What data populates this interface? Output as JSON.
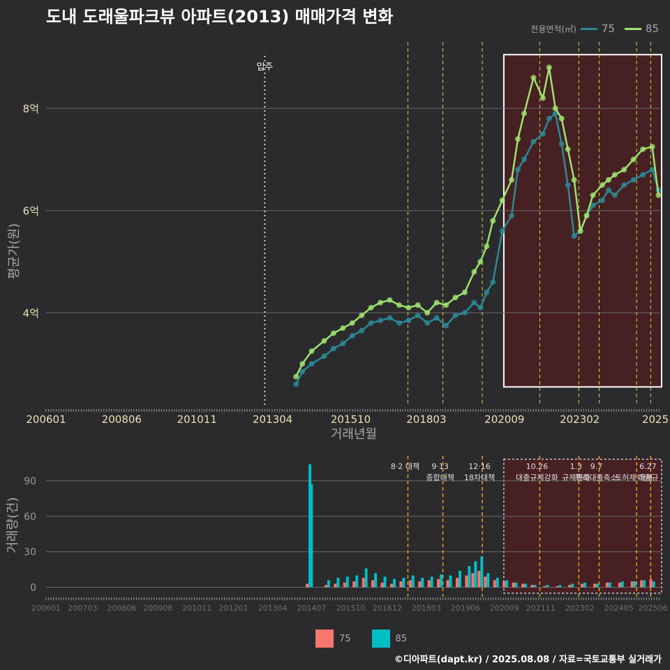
{
  "title": "도내 도래울파크뷰 아파트(2013) 매매가격 변화",
  "credit": "©디아파트(dapt.kr) / 2025.08.08 / 자료=국토교통부 실거래가",
  "legend_top": {
    "title": "전용면적(㎡)",
    "items": [
      {
        "label": "75",
        "color": "#2a8a94"
      },
      {
        "label": "85",
        "color": "#9ee36e"
      }
    ]
  },
  "legend_bottom": {
    "items": [
      {
        "label": "75",
        "color": "#f8766d"
      },
      {
        "label": "85",
        "color": "#00bfc4"
      }
    ]
  },
  "chart_data": [
    {
      "type": "line",
      "title": "도내 도래울파크뷰 아파트(2013) 매매가격 변화",
      "xlabel": "거래년월",
      "ylabel": "평균가(원)",
      "xlim": [
        2006.0,
        2025.7
      ],
      "ylim": [
        2.2,
        9.3
      ],
      "x_tick_labels": [
        "200601",
        "200806",
        "201011",
        "201304",
        "201510",
        "201803",
        "202009",
        "202302",
        "2025"
      ],
      "x_tick_values": [
        2006.0,
        2008.42,
        2010.83,
        2013.25,
        2015.75,
        2018.17,
        2020.67,
        2023.08,
        2025.5
      ],
      "y_tick_labels": [
        "4억",
        "6억",
        "8억"
      ],
      "y_tick_values": [
        4,
        6,
        8
      ],
      "annotation": {
        "label": "입주",
        "x": 2013.0
      },
      "policy_lines": [
        2017.58,
        2018.7,
        2019.96,
        2021.8,
        2023.05,
        2023.7,
        2024.9,
        2025.35
      ],
      "highlight": {
        "x_start": 2020.65,
        "x_end": 2025.7,
        "y_start": 2.55,
        "y_end": 9.05
      },
      "series": [
        {
          "name": "75",
          "x": [
            2014.0,
            2014.2,
            2014.5,
            2014.9,
            2015.2,
            2015.5,
            2015.8,
            2016.1,
            2016.4,
            2016.7,
            2017.0,
            2017.3,
            2017.6,
            2017.9,
            2018.2,
            2018.5,
            2018.8,
            2019.1,
            2019.4,
            2019.7,
            2019.9,
            2020.1,
            2020.3,
            2020.6,
            2020.9,
            2021.1,
            2021.3,
            2021.6,
            2021.9,
            2022.1,
            2022.3,
            2022.5,
            2022.7,
            2022.9,
            2023.1,
            2023.3,
            2023.5,
            2023.8,
            2024.0,
            2024.2,
            2024.5,
            2024.8,
            2025.1,
            2025.4,
            2025.6
          ],
          "y": [
            2.6,
            2.85,
            3.0,
            3.15,
            3.3,
            3.4,
            3.55,
            3.65,
            3.8,
            3.85,
            3.9,
            3.8,
            3.85,
            3.95,
            3.8,
            3.9,
            3.75,
            3.95,
            4.0,
            4.2,
            4.1,
            4.4,
            4.6,
            5.6,
            5.9,
            6.8,
            7.0,
            7.35,
            7.5,
            7.8,
            7.9,
            7.3,
            6.5,
            5.5,
            5.6,
            5.9,
            6.1,
            6.2,
            6.4,
            6.3,
            6.5,
            6.6,
            6.7,
            6.8,
            6.4
          ]
        },
        {
          "name": "85",
          "x": [
            2014.0,
            2014.2,
            2014.5,
            2014.9,
            2015.2,
            2015.5,
            2015.8,
            2016.1,
            2016.4,
            2016.7,
            2017.0,
            2017.3,
            2017.6,
            2017.9,
            2018.2,
            2018.5,
            2018.8,
            2019.1,
            2019.4,
            2019.7,
            2019.9,
            2020.1,
            2020.3,
            2020.6,
            2020.9,
            2021.1,
            2021.3,
            2021.6,
            2021.9,
            2022.1,
            2022.3,
            2022.5,
            2022.7,
            2022.9,
            2023.1,
            2023.3,
            2023.5,
            2023.8,
            2024.0,
            2024.2,
            2024.5,
            2024.8,
            2025.1,
            2025.4,
            2025.6
          ],
          "y": [
            2.75,
            3.0,
            3.25,
            3.45,
            3.6,
            3.7,
            3.8,
            3.95,
            4.1,
            4.2,
            4.25,
            4.15,
            4.1,
            4.15,
            4.0,
            4.2,
            4.15,
            4.3,
            4.4,
            4.8,
            5.0,
            5.3,
            5.8,
            6.2,
            6.6,
            7.4,
            7.9,
            8.6,
            8.2,
            8.8,
            8.0,
            7.8,
            7.2,
            6.6,
            5.6,
            5.9,
            6.3,
            6.5,
            6.6,
            6.7,
            6.8,
            7.0,
            7.2,
            7.25,
            6.3
          ]
        }
      ]
    },
    {
      "type": "bar",
      "ylabel": "거래량(건)",
      "ylim": [
        -5,
        110
      ],
      "y_tick_values": [
        0,
        30,
        60,
        90
      ],
      "x_tick_labels": [
        "200601",
        "200703",
        "200806",
        "200908",
        "201011",
        "201201",
        "201304",
        "201407",
        "201510",
        "201612",
        "201803",
        "201906",
        "202009",
        "202111",
        "202302",
        "202405",
        "202506"
      ],
      "x_tick_values": [
        2006.0,
        2007.17,
        2008.42,
        2009.58,
        2010.83,
        2012.0,
        2013.25,
        2014.5,
        2015.75,
        2016.92,
        2018.17,
        2019.42,
        2020.67,
        2021.83,
        2023.08,
        2024.33,
        2025.42
      ],
      "policies": [
        {
          "x": 2017.58,
          "lines": [
            "8·2 대책"
          ]
        },
        {
          "x": 2018.7,
          "lines": [
            "9·13",
            "종합대책"
          ]
        },
        {
          "x": 2019.96,
          "lines": [
            "12·16",
            "18차대책"
          ]
        },
        {
          "x": 2021.8,
          "lines": [
            "10.26",
            "대출규제강화"
          ]
        },
        {
          "x": 2023.05,
          "lines": [
            "1.3",
            "규제완화"
          ]
        },
        {
          "x": 2023.7,
          "lines": [
            "9.7",
            "특례대출축소"
          ]
        },
        {
          "x": 2024.9,
          "lines": [
            "",
            "토허제 해제"
          ]
        },
        {
          "x": 2025.35,
          "lines": [
            "6.27",
            "대출규"
          ]
        }
      ],
      "highlight": {
        "x_start": 2020.65,
        "x_end": 2025.7
      },
      "series": [
        {
          "name": "75",
          "x": [
            2014.4,
            2014.45,
            2015.0,
            2015.3,
            2015.6,
            2015.9,
            2016.2,
            2016.5,
            2016.8,
            2017.1,
            2017.4,
            2017.7,
            2018.0,
            2018.3,
            2018.6,
            2018.9,
            2019.2,
            2019.5,
            2019.7,
            2019.9,
            2020.1,
            2020.4,
            2020.7,
            2021.0,
            2021.3,
            2021.6,
            2022.0,
            2022.4,
            2022.8,
            2023.2,
            2023.6,
            2024.0,
            2024.4,
            2024.8,
            2025.1,
            2025.4
          ],
          "y": [
            3,
            2,
            2,
            3,
            4,
            5,
            8,
            6,
            4,
            3,
            5,
            6,
            5,
            6,
            7,
            6,
            8,
            10,
            12,
            14,
            9,
            6,
            5,
            4,
            3,
            2,
            1,
            1,
            2,
            3,
            3,
            4,
            4,
            5,
            6,
            7
          ]
        },
        {
          "name": "85",
          "x": [
            2014.4,
            2014.45,
            2015.0,
            2015.3,
            2015.6,
            2015.9,
            2016.2,
            2016.5,
            2016.8,
            2017.1,
            2017.4,
            2017.7,
            2018.0,
            2018.3,
            2018.6,
            2018.9,
            2019.2,
            2019.5,
            2019.7,
            2019.9,
            2020.1,
            2020.4,
            2020.7,
            2021.0,
            2021.3,
            2021.6,
            2022.0,
            2022.4,
            2022.8,
            2023.2,
            2023.6,
            2024.0,
            2024.4,
            2024.8,
            2025.1,
            2025.4
          ],
          "y": [
            104,
            87,
            6,
            8,
            9,
            10,
            16,
            12,
            9,
            7,
            8,
            10,
            8,
            9,
            11,
            10,
            14,
            18,
            22,
            26,
            12,
            8,
            6,
            4,
            3,
            2,
            2,
            2,
            3,
            4,
            3,
            4,
            5,
            5,
            6,
            5
          ]
        }
      ]
    }
  ]
}
